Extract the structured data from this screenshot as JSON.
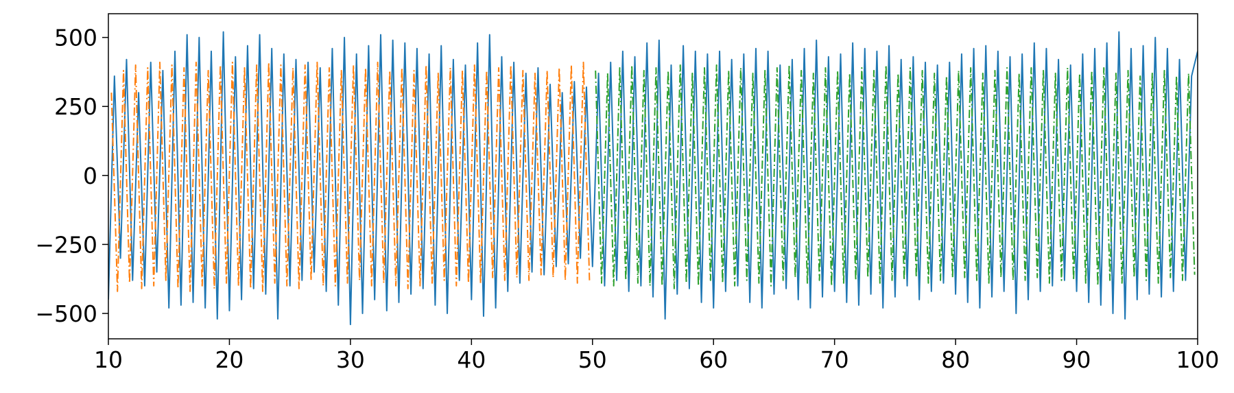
{
  "chart_data": {
    "type": "line",
    "xlim": [
      10,
      100
    ],
    "xticks": [
      10,
      20,
      30,
      40,
      50,
      60,
      70,
      80,
      90,
      100
    ],
    "ylim": [
      -592,
      586
    ],
    "yticks": [
      {
        "value": -500,
        "label": "−500"
      },
      {
        "value": -250,
        "label": "−250"
      },
      0,
      250,
      500
    ],
    "grid": false,
    "series": [
      {
        "color": "#1f77b4",
        "linestyle": "solid",
        "x": [
          10,
          10.5,
          11,
          11.5,
          12,
          12.5,
          13,
          13.5,
          14,
          14.5,
          15,
          15.5,
          16,
          16.5,
          17,
          17.5,
          18,
          18.5,
          19,
          19.5,
          20,
          20.5,
          21,
          21.5,
          22,
          22.5,
          23,
          23.5,
          24,
          24.5,
          25,
          25.5,
          26,
          26.5,
          27,
          27.5,
          28,
          28.5,
          29,
          29.5,
          30,
          30.5,
          31,
          31.5,
          32,
          32.5,
          33,
          33.5,
          34,
          34.5,
          35,
          35.5,
          36,
          36.5,
          37,
          37.5,
          38,
          38.5,
          39,
          39.5,
          40,
          40.5,
          41,
          41.5,
          42,
          42.5,
          43,
          43.5,
          44,
          44.5,
          45,
          45.5,
          46,
          46.5,
          47,
          47.5,
          48,
          48.5,
          49,
          49.5,
          50,
          50.5,
          51,
          51.5,
          52,
          52.5,
          53,
          53.5,
          54,
          54.5,
          55,
          55.5,
          56,
          56.5,
          57,
          57.5,
          58,
          58.5,
          59,
          59.5,
          60,
          60.5,
          61,
          61.5,
          62,
          62.5,
          63,
          63.5,
          64,
          64.5,
          65,
          65.5,
          66,
          66.5,
          67,
          67.5,
          68,
          68.5,
          69,
          69.5,
          70,
          70.5,
          71,
          71.5,
          72,
          72.5,
          73,
          73.5,
          74,
          74.5,
          75,
          75.5,
          76,
          76.5,
          77,
          77.5,
          78,
          78.5,
          79,
          79.5,
          80,
          80.5,
          81,
          81.5,
          82,
          82.5,
          83,
          83.5,
          84,
          84.5,
          85,
          85.5,
          86,
          86.5,
          87,
          87.5,
          88,
          88.5,
          89,
          89.5,
          90,
          90.5,
          91,
          91.5,
          92,
          92.5,
          93,
          93.5,
          94,
          94.5,
          95,
          95.5,
          96,
          96.5,
          97,
          97.5,
          98,
          98.5,
          99,
          99.5,
          100
        ],
        "values": [
          -450,
          360,
          -300,
          420,
          -380,
          300,
          -400,
          410,
          -350,
          380,
          -480,
          450,
          -470,
          510,
          -460,
          500,
          -480,
          450,
          -520,
          520,
          -490,
          430,
          -450,
          470,
          -410,
          510,
          -430,
          460,
          -520,
          440,
          -400,
          420,
          -380,
          410,
          -350,
          390,
          -420,
          460,
          -470,
          500,
          -540,
          440,
          -500,
          470,
          -450,
          510,
          -490,
          490,
          -460,
          480,
          -430,
          460,
          -410,
          440,
          -470,
          470,
          -500,
          420,
          -380,
          400,
          -450,
          480,
          -510,
          510,
          -480,
          430,
          -420,
          410,
          -390,
          370,
          -350,
          390,
          -360,
          330,
          -330,
          300,
          -320,
          340,
          -300,
          320,
          -330,
          370,
          -400,
          410,
          -380,
          450,
          -420,
          430,
          -400,
          480,
          -440,
          490,
          -520,
          400,
          -430,
          470,
          -410,
          450,
          -460,
          440,
          -480,
          450,
          -420,
          420,
          -400,
          440,
          -460,
          460,
          -480,
          450,
          -430,
          400,
          -410,
          420,
          -450,
          460,
          -480,
          490,
          -440,
          430,
          -420,
          440,
          -460,
          480,
          -470,
          460,
          -430,
          450,
          -480,
          470,
          -440,
          420,
          -400,
          430,
          -450,
          410,
          -420,
          400,
          -390,
          410,
          -430,
          440,
          -460,
          460,
          -480,
          470,
          -440,
          450,
          -420,
          430,
          -500,
          440,
          -450,
          480,
          -420,
          460,
          -400,
          420,
          -380,
          400,
          -420,
          440,
          -460,
          460,
          -470,
          480,
          -500,
          520,
          -520,
          460,
          -450,
          470,
          -430,
          500,
          -440,
          460,
          -420,
          420,
          -380,
          360,
          450
        ]
      },
      {
        "color": "#ff7f0e",
        "linestyle": "dashdot",
        "x": [
          10.25,
          10.75,
          11.25,
          11.75,
          12.25,
          12.75,
          13.25,
          13.75,
          14.25,
          14.75,
          15.25,
          15.75,
          16.25,
          16.75,
          17.25,
          17.75,
          18.25,
          18.75,
          19.25,
          19.75,
          20.25,
          20.75,
          21.25,
          21.75,
          22.25,
          22.75,
          23.25,
          23.75,
          24.25,
          24.75,
          25.25,
          25.75,
          26.25,
          26.75,
          27.25,
          27.75,
          28.25,
          28.75,
          29.25,
          29.75,
          30.25,
          30.75,
          31.25,
          31.75,
          32.25,
          32.75,
          33.25,
          33.75,
          34.25,
          34.75,
          35.25,
          35.75,
          36.25,
          36.75,
          37.25,
          37.75,
          38.25,
          38.75,
          39.25,
          39.75,
          40.25,
          40.75,
          41.25,
          41.75,
          42.25,
          42.75,
          43.25,
          43.75,
          44.25,
          44.75,
          45.25,
          45.75,
          46.25,
          46.75,
          47.25,
          47.75,
          48.25,
          48.75,
          49.25,
          49.75
        ],
        "values": [
          300,
          -420,
          380,
          -390,
          400,
          -410,
          390,
          -400,
          410,
          -380,
          400,
          -410,
          390,
          -420,
          410,
          -400,
          380,
          -410,
          400,
          -390,
          410,
          -400,
          390,
          -410,
          400,
          -420,
          410,
          -390,
          400,
          -400,
          390,
          -410,
          400,
          -380,
          410,
          -400,
          390,
          -400,
          380,
          -390,
          400,
          -380,
          390,
          -400,
          410,
          -390,
          380,
          -400,
          390,
          -410,
          380,
          -400,
          400,
          -390,
          370,
          -380,
          390,
          -400,
          380,
          -390,
          400,
          -390,
          380,
          -370,
          390,
          -380,
          400,
          -370,
          380,
          -380,
          370,
          -360,
          380,
          -370,
          390,
          -380,
          400,
          -390,
          410,
          -380
        ]
      },
      {
        "color": "#2ca02c",
        "linestyle": "dashdot",
        "x": [
          50.25,
          50.75,
          51.25,
          51.75,
          52.25,
          52.75,
          53.25,
          53.75,
          54.25,
          54.75,
          55.25,
          55.75,
          56.25,
          56.75,
          57.25,
          57.75,
          58.25,
          58.75,
          59.25,
          59.75,
          60.25,
          60.75,
          61.25,
          61.75,
          62.25,
          62.75,
          63.25,
          63.75,
          64.25,
          64.75,
          65.25,
          65.75,
          66.25,
          66.75,
          67.25,
          67.75,
          68.25,
          68.75,
          69.25,
          69.75,
          70.25,
          70.75,
          71.25,
          71.75,
          72.25,
          72.75,
          73.25,
          73.75,
          74.25,
          74.75,
          75.25,
          75.75,
          76.25,
          76.75,
          77.25,
          77.75,
          78.25,
          78.75,
          79.25,
          79.75,
          80.25,
          80.75,
          81.25,
          81.75,
          82.25,
          82.75,
          83.25,
          83.75,
          84.25,
          84.75,
          85.25,
          85.75,
          86.25,
          86.75,
          87.25,
          87.75,
          88.25,
          88.75,
          89.25,
          89.75,
          90.25,
          90.75,
          91.25,
          91.75,
          92.25,
          92.75,
          93.25,
          93.75,
          94.25,
          94.75,
          95.25,
          95.75,
          96.25,
          96.75,
          97.25,
          97.75,
          98.25,
          98.75,
          99.25,
          99.75
        ],
        "values": [
          380,
          -390,
          370,
          -400,
          390,
          -380,
          400,
          -390,
          380,
          -400,
          390,
          -400,
          380,
          -410,
          400,
          -390,
          370,
          -400,
          390,
          -380,
          400,
          -390,
          380,
          -400,
          390,
          -380,
          370,
          -390,
          380,
          -400,
          390,
          -380,
          400,
          -370,
          380,
          -390,
          370,
          -380,
          390,
          -400,
          380,
          -390,
          370,
          -380,
          390,
          -370,
          380,
          -390,
          400,
          -380,
          370,
          -380,
          390,
          -370,
          380,
          -390,
          370,
          -380,
          360,
          -370,
          380,
          -370,
          390,
          -380,
          370,
          -390,
          380,
          -370,
          390,
          -380,
          370,
          -380,
          390,
          -370,
          380,
          -390,
          370,
          -380,
          390,
          -380,
          370,
          -390,
          380,
          -400,
          390,
          -380,
          370,
          -390,
          380,
          -370,
          360,
          -380,
          370,
          -390,
          380,
          -370,
          360,
          -380,
          370,
          -360
        ]
      }
    ]
  }
}
